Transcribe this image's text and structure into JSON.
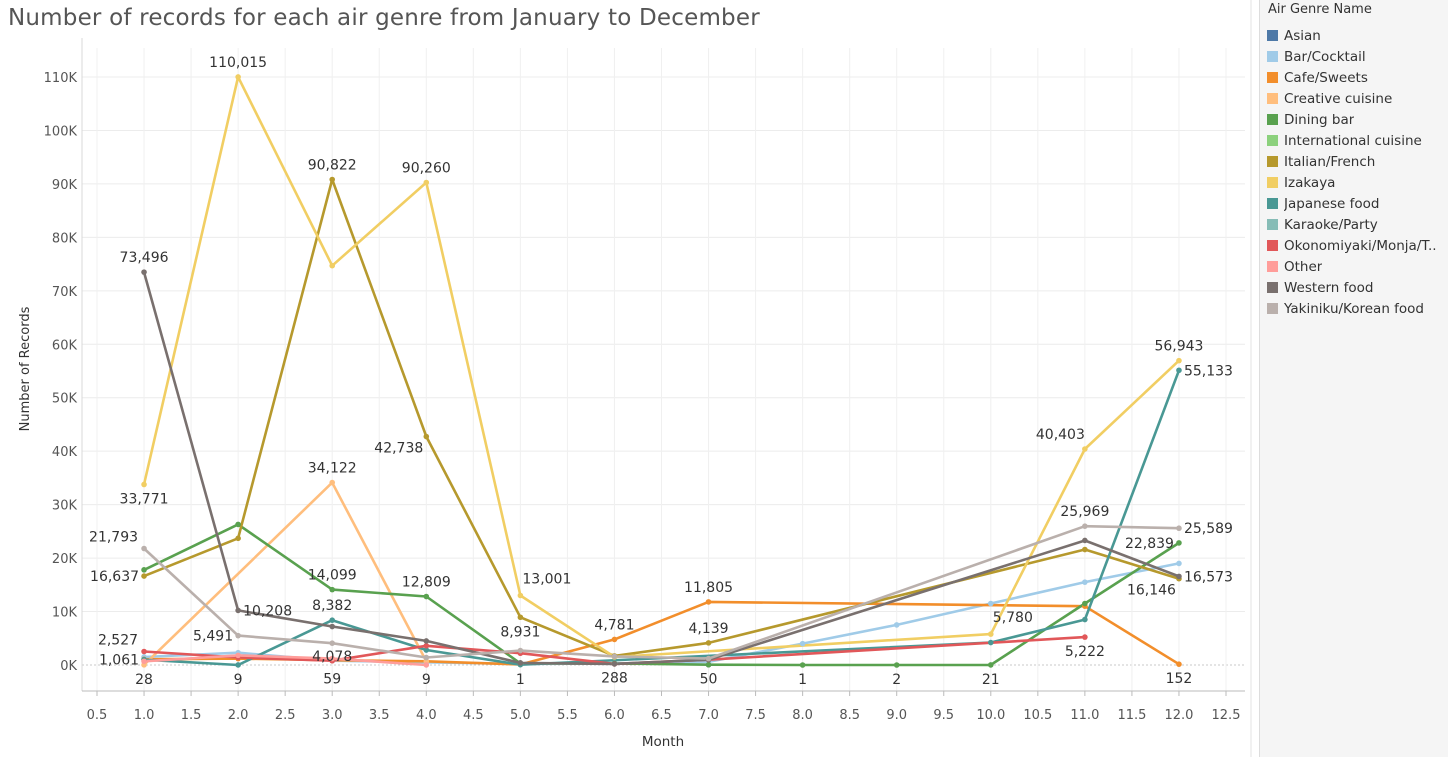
{
  "chart_data": {
    "type": "line",
    "title": "Number of records for each air genre from January to December",
    "xlabel": "Month",
    "ylabel": "Number of Records",
    "xlim": [
      0.5,
      12.5
    ],
    "ylim": [
      0,
      110000
    ],
    "x_ticks": [
      "0.5",
      "1.0",
      "1.5",
      "2.0",
      "2.5",
      "3.0",
      "3.5",
      "4.0",
      "4.5",
      "5.0",
      "5.5",
      "6.0",
      "6.5",
      "7.0",
      "7.5",
      "8.0",
      "8.5",
      "9.0",
      "9.5",
      "10.0",
      "10.5",
      "11.0",
      "11.5",
      "12.0",
      "12.5"
    ],
    "y_ticks": [
      "0K",
      "10K",
      "20K",
      "30K",
      "40K",
      "50K",
      "60K",
      "70K",
      "80K",
      "90K",
      "100K",
      "110K"
    ],
    "grid": true,
    "legend_title": "Air Genre Name",
    "legend_position": "right",
    "series": [
      {
        "name": "Asian",
        "color": "#4e79a7",
        "x": [
          7
        ],
        "y": [
          50
        ]
      },
      {
        "name": "Bar/Cocktail",
        "color": "#a0cbe8",
        "x": [
          1,
          2,
          3,
          4,
          5,
          6,
          7,
          8,
          9,
          10,
          11,
          12
        ],
        "y": [
          1500,
          2300,
          800,
          500,
          200,
          300,
          600,
          4000,
          7500,
          11500,
          15500,
          19000
        ]
      },
      {
        "name": "Cafe/Sweets",
        "color": "#f28e2b",
        "x": [
          1,
          2,
          3,
          4,
          5,
          6,
          7,
          11,
          12
        ],
        "y": [
          1061,
          1200,
          900,
          700,
          100,
          4781,
          11805,
          11000,
          152
        ]
      },
      {
        "name": "Creative cuisine",
        "color": "#ffbe7d",
        "x": [
          1,
          3,
          4
        ],
        "y": [
          28,
          34122,
          700
        ]
      },
      {
        "name": "Dining bar",
        "color": "#59a14f",
        "x": [
          1,
          2,
          3,
          4,
          5,
          6,
          7,
          8,
          9,
          10,
          11,
          12
        ],
        "y": [
          17800,
          26300,
          14099,
          12809,
          300,
          288,
          50,
          1,
          2,
          21,
          11500,
          22839
        ]
      },
      {
        "name": "International cuisine",
        "color": "#8cd17d",
        "x": [],
        "y": []
      },
      {
        "name": "Italian/French",
        "color": "#b6992d",
        "x": [
          1,
          2,
          3,
          4,
          5,
          6,
          7,
          11,
          12
        ],
        "y": [
          16637,
          23700,
          90822,
          42738,
          8931,
          1700,
          4139,
          21600,
          16146
        ]
      },
      {
        "name": "Izakaya",
        "color": "#f1ce63",
        "x": [
          1,
          2,
          3,
          4,
          5,
          6,
          10,
          11,
          12
        ],
        "y": [
          33771,
          110015,
          74700,
          90260,
          13001,
          1500,
          5780,
          40403,
          56943
        ]
      },
      {
        "name": "Japanese food",
        "color": "#499894",
        "x": [
          1,
          2,
          3,
          4,
          5,
          10,
          11,
          12
        ],
        "y": [
          1000,
          9,
          8382,
          2800,
          59,
          4200,
          8500,
          55133
        ]
      },
      {
        "name": "Karaoke/Party",
        "color": "#86bcb6",
        "x": [],
        "y": []
      },
      {
        "name": "Okonomiyaki/Monja/T..",
        "color": "#e15759",
        "x": [
          1,
          2,
          3,
          4,
          5,
          6,
          7,
          11
        ],
        "y": [
          2527,
          1400,
          800,
          3600,
          2200,
          200,
          1000,
          5222
        ]
      },
      {
        "name": "Other",
        "color": "#ff9d9a",
        "x": [
          1,
          2,
          3,
          4
        ],
        "y": [
          700,
          1800,
          1200,
          9
        ]
      },
      {
        "name": "Western food",
        "color": "#79706e",
        "x": [
          1,
          2,
          3,
          4,
          5,
          6,
          7,
          11,
          12
        ],
        "y": [
          73496,
          10208,
          7200,
          4500,
          400,
          200,
          1000,
          23300,
          16573
        ]
      },
      {
        "name": "Yakiniku/Korean food",
        "color": "#bab0ac",
        "x": [
          1,
          2,
          3,
          4,
          5,
          6,
          7,
          11,
          12
        ],
        "y": [
          21793,
          5491,
          4078,
          1400,
          2700,
          1600,
          1200,
          25969,
          25589
        ]
      }
    ],
    "annotations": [
      {
        "text": "110,015",
        "x": 2,
        "y": 110015,
        "pos": "above"
      },
      {
        "text": "90,822",
        "x": 3,
        "y": 90822,
        "pos": "above"
      },
      {
        "text": "90,260",
        "x": 4,
        "y": 90260,
        "pos": "above"
      },
      {
        "text": "73,496",
        "x": 1,
        "y": 73496,
        "pos": "above"
      },
      {
        "text": "56,943",
        "x": 12,
        "y": 56943,
        "pos": "above"
      },
      {
        "text": "55,133",
        "x": 12,
        "y": 55133,
        "pos": "right"
      },
      {
        "text": "42,738",
        "x": 4,
        "y": 42738,
        "pos": "below-left"
      },
      {
        "text": "40,403",
        "x": 11,
        "y": 40403,
        "pos": "above-left"
      },
      {
        "text": "34,122",
        "x": 3,
        "y": 34122,
        "pos": "above"
      },
      {
        "text": "33,771",
        "x": 1,
        "y": 33771,
        "pos": "below"
      },
      {
        "text": "25,969",
        "x": 11,
        "y": 25969,
        "pos": "above"
      },
      {
        "text": "25,589",
        "x": 12,
        "y": 25589,
        "pos": "right"
      },
      {
        "text": "22,839",
        "x": 12,
        "y": 22839,
        "pos": "left"
      },
      {
        "text": "21,793",
        "x": 1,
        "y": 21793,
        "pos": "left-up"
      },
      {
        "text": "16,637",
        "x": 1,
        "y": 16637,
        "pos": "left"
      },
      {
        "text": "16,573",
        "x": 12,
        "y": 16573,
        "pos": "right"
      },
      {
        "text": "16,146",
        "x": 12,
        "y": 16146,
        "pos": "below-left"
      },
      {
        "text": "14,099",
        "x": 3,
        "y": 14099,
        "pos": "above"
      },
      {
        "text": "13,001",
        "x": 5,
        "y": 13001,
        "pos": "above-right"
      },
      {
        "text": "12,809",
        "x": 4,
        "y": 12809,
        "pos": "above"
      },
      {
        "text": "11,805",
        "x": 7,
        "y": 11805,
        "pos": "above"
      },
      {
        "text": "10,208",
        "x": 2,
        "y": 10208,
        "pos": "right"
      },
      {
        "text": "8,931",
        "x": 5,
        "y": 8931,
        "pos": "below"
      },
      {
        "text": "8,382",
        "x": 3,
        "y": 8382,
        "pos": "above"
      },
      {
        "text": "5,780",
        "x": 10,
        "y": 5780,
        "pos": "above-right"
      },
      {
        "text": "5,491",
        "x": 2,
        "y": 5491,
        "pos": "left"
      },
      {
        "text": "5,222",
        "x": 11,
        "y": 5222,
        "pos": "below"
      },
      {
        "text": "4,781",
        "x": 6,
        "y": 4781,
        "pos": "above"
      },
      {
        "text": "4,139",
        "x": 7,
        "y": 4139,
        "pos": "above"
      },
      {
        "text": "4,078",
        "x": 3,
        "y": 4078,
        "pos": "below-center"
      },
      {
        "text": "2,527",
        "x": 1,
        "y": 2527,
        "pos": "left-up"
      },
      {
        "text": "1,061",
        "x": 1,
        "y": 1061,
        "pos": "left"
      },
      {
        "text": "28",
        "x": 1,
        "y": 28,
        "pos": "below"
      },
      {
        "text": "9",
        "x": 2,
        "y": 9,
        "pos": "below"
      },
      {
        "text": "59",
        "x": 3,
        "y": 59,
        "pos": "below"
      },
      {
        "text": "9",
        "x": 4,
        "y": 9,
        "pos": "below"
      },
      {
        "text": "1",
        "x": 5,
        "y": 1,
        "pos": "below"
      },
      {
        "text": "288",
        "x": 6,
        "y": 288,
        "pos": "below"
      },
      {
        "text": "50",
        "x": 7,
        "y": 50,
        "pos": "below"
      },
      {
        "text": "1",
        "x": 8,
        "y": 1,
        "pos": "below"
      },
      {
        "text": "2",
        "x": 9,
        "y": 2,
        "pos": "below"
      },
      {
        "text": "21",
        "x": 10,
        "y": 21,
        "pos": "below"
      },
      {
        "text": "152",
        "x": 12,
        "y": 152,
        "pos": "below"
      }
    ]
  }
}
